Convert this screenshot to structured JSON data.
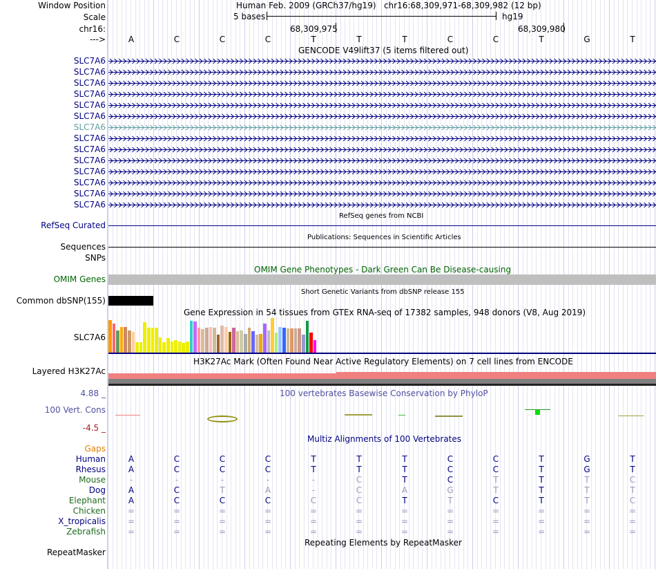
{
  "header": {
    "window_position_label": "Window Position",
    "window_position_value": "Human Feb. 2009 (GRCh37/hg19)   chr16:68,309,971-68,309,982 (12 bp)",
    "scale_label": "Scale",
    "scale_bases": "5 bases",
    "scale_assembly": "hg19",
    "chrom_label": "chr16:",
    "coord_1": "68,309,975",
    "coord_2": "68,309,980",
    "strand_label": "--->",
    "bases": [
      "A",
      "C",
      "C",
      "C",
      "T",
      "T",
      "T",
      "C",
      "C",
      "T",
      "G",
      "T"
    ]
  },
  "gencode": {
    "title": "GENCODE V49lift37 (5 items filtered out)",
    "genes": [
      "SLC7A6",
      "SLC7A6",
      "SLC7A6",
      "SLC7A6",
      "SLC7A6",
      "SLC7A6",
      "SLC7A6",
      "SLC7A6",
      "SLC7A6",
      "SLC7A6",
      "SLC7A6",
      "SLC7A6",
      "SLC7A6",
      "SLC7A6"
    ],
    "highlight_index": 6,
    "highlight_color": "#5f9ea0",
    "gene_color": "#000080"
  },
  "refseq": {
    "title": "RefSeq genes from NCBI",
    "label": "RefSeq Curated"
  },
  "publications": {
    "title": "Publications: Sequences in Scientific Articles",
    "label": "Sequences"
  },
  "snps_label": "SNPs",
  "omim": {
    "title": "OMIM Gene Phenotypes - Dark Green Can Be Disease-causing",
    "label": "OMIM Genes",
    "color": "#006400"
  },
  "dbsnp": {
    "title": "Short Genetic Variants from dbSNP release 155",
    "label": "Common dbSNP(155)"
  },
  "gtex": {
    "title": "Gene Expression in 54 tissues from GTEx RNA-seq of 17382 samples, 948 donors (V8, Aug 2019)",
    "label": "SLC7A6"
  },
  "chart_data": {
    "type": "bar",
    "title": "Gene Expression in 54 tissues from GTEx RNA-seq of 17382 samples, 948 donors (V8, Aug 2019)",
    "xlabel": "",
    "ylabel": "",
    "ylim": [
      0,
      1
    ],
    "values": [
      0.95,
      0.85,
      0.65,
      0.75,
      0.75,
      0.65,
      0.6,
      0.3,
      0.3,
      0.88,
      0.72,
      0.72,
      0.72,
      0.45,
      0.3,
      0.42,
      0.32,
      0.37,
      0.32,
      0.28,
      0.32,
      0.92,
      0.9,
      0.72,
      0.68,
      0.72,
      0.75,
      0.72,
      0.52,
      0.78,
      0.75,
      0.6,
      0.72,
      0.62,
      0.65,
      0.55,
      0.72,
      0.62,
      0.52,
      0.55,
      0.85,
      0.65,
      1.0,
      0.58,
      0.75,
      0.72,
      0.7,
      0.7,
      0.7,
      0.7,
      0.52,
      0.92,
      0.58,
      0.37
    ],
    "colors": [
      "#ff9900",
      "#ff6666",
      "#669966",
      "#ffaa00",
      "#cc8866",
      "#cc9966",
      "#ffcc99",
      "#eeee00",
      "#eeee00",
      "#eeee00",
      "#eeee00",
      "#eeee00",
      "#eeee00",
      "#eeee00",
      "#eeee00",
      "#eeee00",
      "#eeee00",
      "#eeee00",
      "#eeee00",
      "#eeee00",
      "#eeee00",
      "#33cccc",
      "#cc66ff",
      "#ff9999",
      "#ddbb99",
      "#ccaa99",
      "#ffbbbb",
      "#ccbb99",
      "#996633",
      "#ddbbaa",
      "#ffccaa",
      "#996600",
      "#cc6699",
      "#ddbb99",
      "#ccccaa",
      "#aaaaaa",
      "#ccaa77",
      "#6666ff",
      "#ddbb99",
      "#eeaa00",
      "#aa66ff",
      "#bbbbbb",
      "#ffcc33",
      "#aaee77",
      "#99ccff",
      "#3366ff",
      "#ccbb99",
      "#dd9966",
      "#ccaa99",
      "#cc9988",
      "#9999cc",
      "#119944",
      "#ff0000",
      "#ff00ff"
    ]
  },
  "h3k27ac": {
    "title": "H3K27Ac Mark (Often Found Near Active Regulatory Elements) on 7 cell lines from ENCODE",
    "label": "Layered H3K27Ac"
  },
  "conservation": {
    "title": "100 vertebrates Basewise Conservation by PhyloP",
    "label": "100 Vert. Cons",
    "max": "4.88 _",
    "min": "-4.5 _"
  },
  "multiz": {
    "title": "Multiz Alignments of 100 Vertebrates",
    "gaps_label": "Gaps",
    "species": [
      {
        "name": "Human",
        "color": "#000080",
        "bases": [
          "A",
          "C",
          "C",
          "C",
          "T",
          "T",
          "T",
          "C",
          "C",
          "T",
          "G",
          "T"
        ],
        "colors": [
          "#000080",
          "#000080",
          "#000080",
          "#000080",
          "#000080",
          "#000080",
          "#000080",
          "#000080",
          "#000080",
          "#000080",
          "#000080",
          "#000080"
        ]
      },
      {
        "name": "Rhesus",
        "color": "#000080",
        "bases": [
          "A",
          "C",
          "C",
          "C",
          "T",
          "T",
          "T",
          "C",
          "C",
          "T",
          "G",
          "T"
        ],
        "colors": [
          "#000080",
          "#000080",
          "#000080",
          "#000080",
          "#000080",
          "#000080",
          "#000080",
          "#000080",
          "#000080",
          "#000080",
          "#000080",
          "#000080"
        ]
      },
      {
        "name": "Mouse",
        "color": "#1f6b1f",
        "bases": [
          "-",
          "-",
          "-",
          "-",
          "-",
          "C",
          "T",
          "C",
          "T",
          "T",
          "T",
          "C"
        ],
        "colors": [
          "#9999bb",
          "#9999bb",
          "#9999bb",
          "#9999bb",
          "#9999bb",
          "#9999bb",
          "#000080",
          "#000080",
          "#9999bb",
          "#000080",
          "#9999bb",
          "#9999bb"
        ]
      },
      {
        "name": "Dog",
        "color": "#000080",
        "bases": [
          "A",
          "C",
          "T",
          "A",
          "-",
          "C",
          "A",
          "G",
          "T",
          "T",
          "T",
          "T"
        ],
        "colors": [
          "#000080",
          "#000080",
          "#9999bb",
          "#9999bb",
          "#9999bb",
          "#9999bb",
          "#9999bb",
          "#9999bb",
          "#9999bb",
          "#000080",
          "#9999bb",
          "#9999bb"
        ]
      },
      {
        "name": "Elephant",
        "color": "#1f6b1f",
        "bases": [
          "A",
          "C",
          "C",
          "C",
          "C",
          "C",
          "T",
          "T",
          "C",
          "T",
          "T",
          "C"
        ],
        "colors": [
          "#000080",
          "#000080",
          "#000080",
          "#000080",
          "#9999bb",
          "#9999bb",
          "#000080",
          "#9999bb",
          "#000080",
          "#000080",
          "#9999bb",
          "#9999bb"
        ]
      },
      {
        "name": "Chicken",
        "color": "#1f6b1f",
        "bases": [
          "=",
          "=",
          "=",
          "=",
          "=",
          "=",
          "=",
          "=",
          "=",
          "=",
          "=",
          "="
        ],
        "colors": [
          "#9999bb",
          "#9999bb",
          "#9999bb",
          "#9999bb",
          "#9999bb",
          "#9999bb",
          "#9999bb",
          "#9999bb",
          "#9999bb",
          "#9999bb",
          "#9999bb",
          "#9999bb"
        ]
      },
      {
        "name": "X_tropicalis",
        "color": "#000080",
        "bases": [
          "=",
          "=",
          "=",
          "=",
          "=",
          "=",
          "=",
          "=",
          "=",
          "=",
          "=",
          "="
        ],
        "colors": [
          "#9999bb",
          "#9999bb",
          "#9999bb",
          "#9999bb",
          "#9999bb",
          "#9999bb",
          "#9999bb",
          "#9999bb",
          "#9999bb",
          "#9999bb",
          "#9999bb",
          "#9999bb"
        ]
      },
      {
        "name": "Zebrafish",
        "color": "#1f6b1f",
        "bases": [
          "=",
          "=",
          "=",
          "=",
          "=",
          "=",
          "=",
          "=",
          "=",
          "=",
          "=",
          "="
        ],
        "colors": [
          "#9999bb",
          "#9999bb",
          "#9999bb",
          "#9999bb",
          "#9999bb",
          "#9999bb",
          "#9999bb",
          "#9999bb",
          "#9999bb",
          "#9999bb",
          "#9999bb",
          "#9999bb"
        ]
      }
    ]
  },
  "repeatmasker": {
    "title": "Repeating Elements by RepeatMasker",
    "label": "RepeatMasker"
  }
}
